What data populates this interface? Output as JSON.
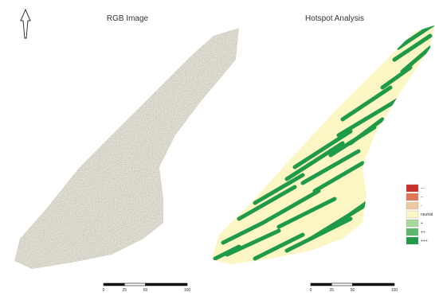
{
  "panels": [
    {
      "title": "RGB Image"
    },
    {
      "title": "Hotspot Analysis"
    }
  ],
  "scale_bars": [
    {
      "labels": [
        "0",
        "25",
        "50",
        "100"
      ]
    },
    {
      "labels": [
        "0",
        "25",
        "50",
        "100"
      ]
    }
  ],
  "legend": [
    {
      "label": "---",
      "color": "#c8302a"
    },
    {
      "label": "--",
      "color": "#e07858"
    },
    {
      "label": "-",
      "color": "#eec9a0"
    },
    {
      "label": "neutral",
      "color": "#fbf6c4"
    },
    {
      "label": "+",
      "color": "#a8d89a"
    },
    {
      "label": "++",
      "color": "#5cb86a"
    },
    {
      "label": "+++",
      "color": "#1f9a48"
    }
  ]
}
